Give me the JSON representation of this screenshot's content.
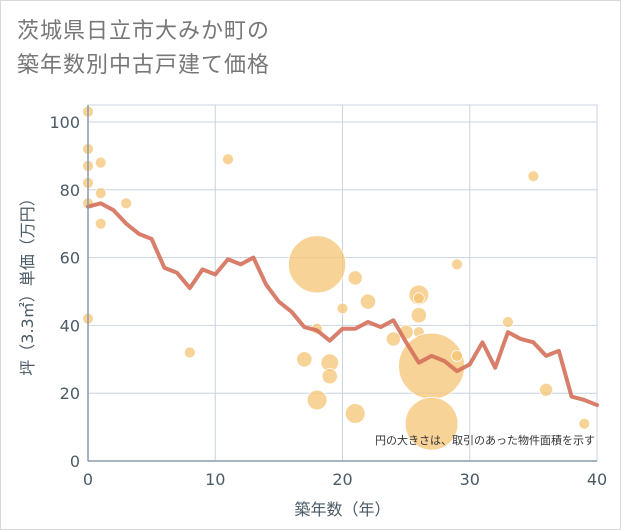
{
  "title": {
    "line1": "茨城県日立市大みか町の",
    "line2": "築年数別中古戸建て価格"
  },
  "chart_data": {
    "type": "scatter+line",
    "xlabel": "築年数（年）",
    "ylabel": "坪（3.3㎡）単価（万円）",
    "xlim": [
      0,
      40
    ],
    "ylim": [
      0,
      105
    ],
    "xticks": [
      0,
      10,
      20,
      30,
      40
    ],
    "yticks": [
      0,
      20,
      40,
      60,
      80,
      100
    ],
    "grid": true,
    "note": "円の大きさは、取引のあった物件面積を示す",
    "colors": {
      "line": "#d4705a",
      "bubble": "#f5c476",
      "grid": "#c8d4e0",
      "axis": "#8a9aa8"
    },
    "scatter": [
      {
        "x": 0,
        "y": 103,
        "size": 1
      },
      {
        "x": 0,
        "y": 92,
        "size": 1
      },
      {
        "x": 0,
        "y": 87,
        "size": 1
      },
      {
        "x": 0,
        "y": 82,
        "size": 1
      },
      {
        "x": 0,
        "y": 76,
        "size": 1
      },
      {
        "x": 0,
        "y": 42,
        "size": 1
      },
      {
        "x": 1,
        "y": 88,
        "size": 1
      },
      {
        "x": 1,
        "y": 79,
        "size": 1
      },
      {
        "x": 1,
        "y": 70,
        "size": 1
      },
      {
        "x": 3,
        "y": 76,
        "size": 1
      },
      {
        "x": 8,
        "y": 32,
        "size": 1
      },
      {
        "x": 11,
        "y": 89,
        "size": 1
      },
      {
        "x": 17,
        "y": 30,
        "size": 1.4
      },
      {
        "x": 18,
        "y": 58,
        "size": 5.2
      },
      {
        "x": 18,
        "y": 39,
        "size": 1
      },
      {
        "x": 18,
        "y": 18,
        "size": 1.8
      },
      {
        "x": 19,
        "y": 29,
        "size": 1.6
      },
      {
        "x": 19,
        "y": 25,
        "size": 1.4
      },
      {
        "x": 20,
        "y": 45,
        "size": 1
      },
      {
        "x": 21,
        "y": 54,
        "size": 1.3
      },
      {
        "x": 21,
        "y": 14,
        "size": 1.8
      },
      {
        "x": 22,
        "y": 47,
        "size": 1.4
      },
      {
        "x": 24,
        "y": 36,
        "size": 1.3
      },
      {
        "x": 25,
        "y": 38,
        "size": 1.3
      },
      {
        "x": 26,
        "y": 49,
        "size": 1.8
      },
      {
        "x": 26,
        "y": 48,
        "size": 1
      },
      {
        "x": 26,
        "y": 43,
        "size": 1.4
      },
      {
        "x": 26,
        "y": 38,
        "size": 1
      },
      {
        "x": 27,
        "y": 28,
        "size": 6
      },
      {
        "x": 27,
        "y": 11,
        "size": 4.8
      },
      {
        "x": 29,
        "y": 58,
        "size": 1
      },
      {
        "x": 29,
        "y": 31,
        "size": 1
      },
      {
        "x": 33,
        "y": 41,
        "size": 1
      },
      {
        "x": 35,
        "y": 84,
        "size": 1
      },
      {
        "x": 36,
        "y": 21,
        "size": 1.2
      },
      {
        "x": 39,
        "y": 11,
        "size": 1
      }
    ],
    "line": {
      "x": [
        0,
        1,
        2,
        3,
        4,
        5,
        6,
        7,
        8,
        9,
        10,
        11,
        12,
        13,
        14,
        15,
        16,
        17,
        18,
        19,
        20,
        21,
        22,
        23,
        24,
        25,
        26,
        27,
        28,
        29,
        30,
        31,
        32,
        33,
        34,
        35,
        36,
        37,
        38,
        39,
        40
      ],
      "y": [
        75,
        76,
        74,
        70,
        67,
        65.5,
        57,
        55.5,
        51,
        56.5,
        55,
        59.5,
        58,
        60,
        52,
        47,
        44,
        39.5,
        38.5,
        35.5,
        39,
        39,
        41,
        39.5,
        41.5,
        35,
        29,
        31,
        29.5,
        26.5,
        28.5,
        35,
        27.5,
        38,
        36,
        35,
        31,
        32.5,
        19,
        18,
        16.5
      ]
    }
  }
}
